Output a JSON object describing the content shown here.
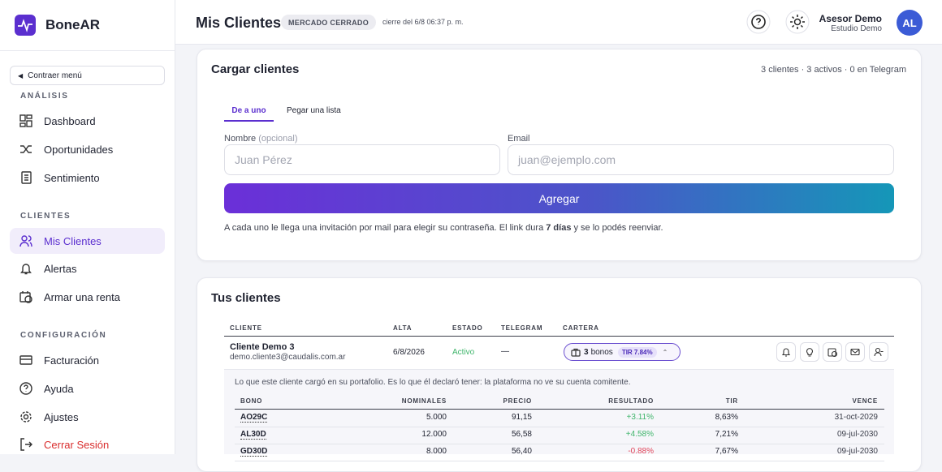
{
  "sidebar": {
    "brand": "BoneAR",
    "collapse": "Contraer menú",
    "sections": [
      {
        "title": "ANÁLISIS",
        "items": [
          "Dashboard",
          "Oportunidades",
          "Sentimiento"
        ]
      },
      {
        "title": "CLIENTES",
        "items": [
          "Mis Clientes",
          "Alertas",
          "Armar una renta"
        ]
      },
      {
        "title": "CONFIGURACIÓN",
        "items": [
          "Facturación",
          "Ayuda",
          "Ajustes",
          "Cerrar Sesión"
        ]
      }
    ]
  },
  "header": {
    "title": "Mis Clientes",
    "badge": "MERCADO CERRADO",
    "close_time": "cierre del 6/8 06:37 p. m.",
    "user_name": "Asesor Demo",
    "user_org": "Estudio Demo",
    "avatar": "AL"
  },
  "load_card": {
    "title": "Cargar clientes",
    "summary": "3 clientes · 3 activos · 0 en Telegram",
    "tabs": [
      "De a uno",
      "Pegar una lista"
    ],
    "name_label": "Nombre",
    "name_optional": "(opcional)",
    "name_placeholder": "Juan Pérez",
    "email_label": "Email",
    "email_placeholder": "juan@ejemplo.com",
    "button": "Agregar",
    "note_before": "A cada uno le llega una invitación por mail para elegir su contraseña. El link dura ",
    "note_bold": "7 días",
    "note_after": " y se lo podés reenviar."
  },
  "clients_card": {
    "title": "Tus clientes",
    "columns": [
      "CLIENTE",
      "ALTA",
      "ESTADO",
      "TELEGRAM",
      "CARTERA"
    ],
    "rows": [
      {
        "name": "Cliente Demo 3",
        "email": "demo.cliente3@caudalis.com.ar",
        "alta": "6/8/2026",
        "estado": "Activo",
        "telegram": "—",
        "bonos_count": "3",
        "bonos_label": "bonos",
        "tir": "TIR 7.84%"
      }
    ],
    "portfolio_note": "Lo que este cliente cargó en su portafolio. Es lo que él declaró tener: la plataforma no ve su cuenta comitente.",
    "portfolio_columns": [
      "BONO",
      "NOMINALES",
      "PRECIO",
      "RESULTADO",
      "TIR",
      "VENCE"
    ],
    "portfolio_rows": [
      [
        "AO29C",
        "5.000",
        "91,15",
        "+3.11%",
        "8,63%",
        "31-oct-2029"
      ],
      [
        "AL30D",
        "12.000",
        "56,58",
        "+4.58%",
        "7,21%",
        "09-jul-2030"
      ],
      [
        "GD30D",
        "8.000",
        "56,40",
        "-0.88%",
        "7,67%",
        "09-jul-2030"
      ]
    ]
  }
}
